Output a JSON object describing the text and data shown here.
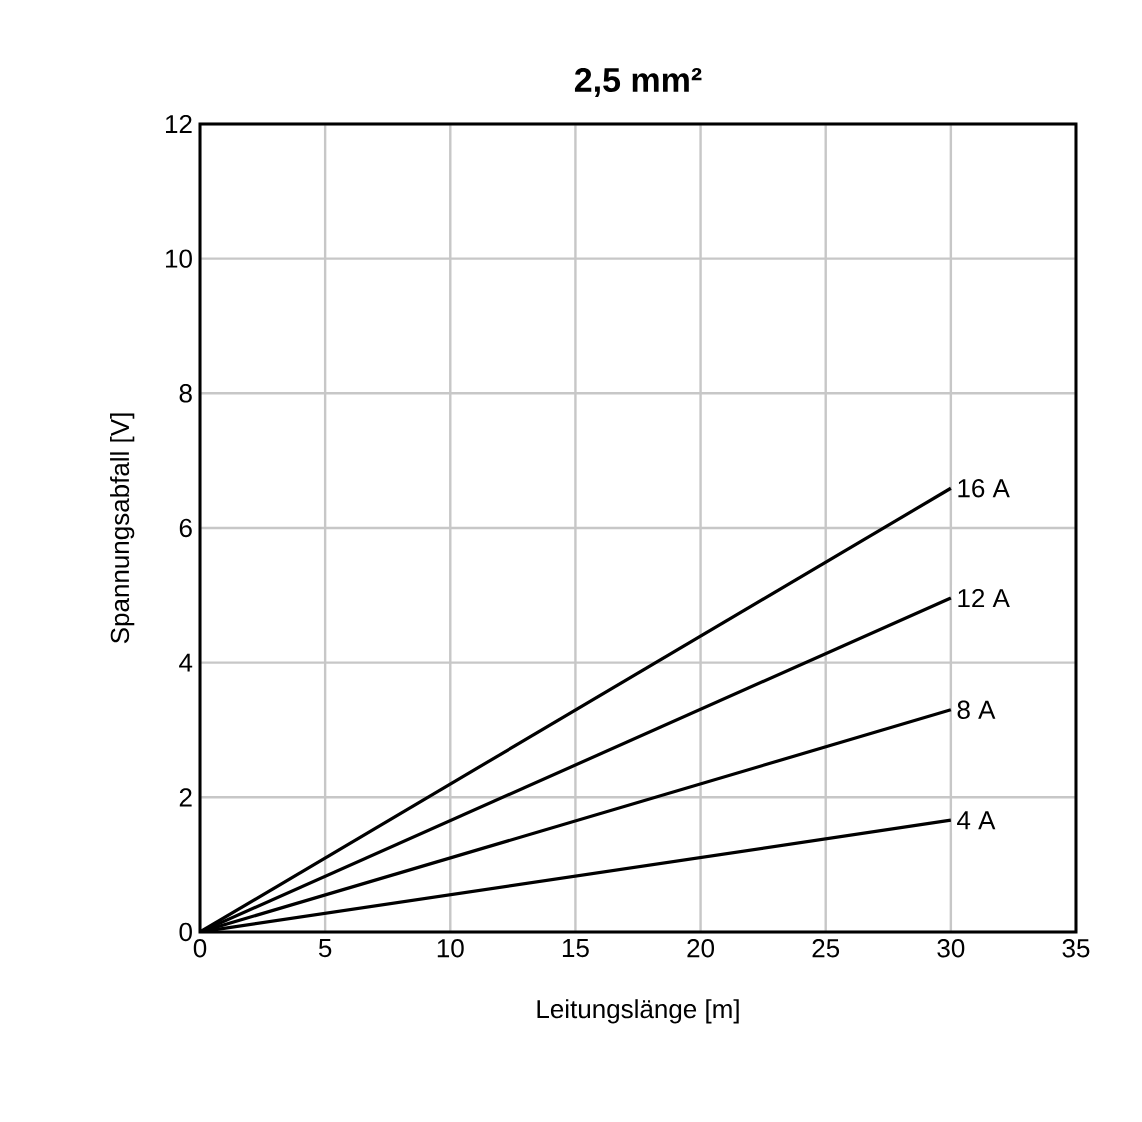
{
  "chart_data": {
    "type": "line",
    "title": "2,5 mm²",
    "xlabel": "Leitungslänge [m]",
    "ylabel": "Spannungsabfall [V]",
    "x": [
      0,
      30
    ],
    "series": [
      {
        "name": "16 A",
        "color": "#000000",
        "values": [
          0,
          6.59
        ]
      },
      {
        "name": "12 A",
        "color": "#000000",
        "values": [
          0,
          4.96
        ]
      },
      {
        "name": "8 A",
        "color": "#000000",
        "values": [
          0,
          3.3
        ]
      },
      {
        "name": "4 A",
        "color": "#000000",
        "values": [
          0,
          1.66
        ]
      }
    ],
    "xlim": [
      0,
      35
    ],
    "xticks": [
      0,
      5,
      10,
      15,
      20,
      25,
      30,
      35
    ],
    "ylim": [
      0,
      12
    ],
    "yticks": [
      0,
      2,
      4,
      6,
      8,
      10,
      12
    ],
    "grid": true,
    "legend": false
  }
}
